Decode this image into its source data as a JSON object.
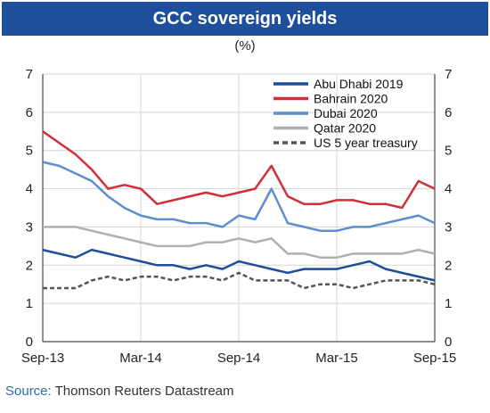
{
  "header": {
    "title": "GCC sovereign yields",
    "unit": "(%)"
  },
  "source": {
    "label": "Source:",
    "text": " Thomson Reuters Datastream"
  },
  "chart_data": {
    "type": "line",
    "title": "GCC sovereign yields",
    "subtitle": "(%)",
    "xlabel": "",
    "ylabel": "",
    "ylim": [
      0,
      7
    ],
    "yticks": [
      0,
      1,
      2,
      3,
      4,
      5,
      6,
      7
    ],
    "xlim": [
      "2013-09",
      "2015-09"
    ],
    "xticks": [
      {
        "value": "2013-09",
        "label": "Sep-13"
      },
      {
        "value": "2014-03",
        "label": "Mar-14"
      },
      {
        "value": "2014-09",
        "label": "Sep-14"
      },
      {
        "value": "2015-03",
        "label": "Mar-15"
      },
      {
        "value": "2015-09",
        "label": "Sep-15"
      }
    ],
    "grid": true,
    "legend_position": "top-right",
    "x": [
      "2013-09",
      "2013-10",
      "2013-11",
      "2013-12",
      "2014-01",
      "2014-02",
      "2014-03",
      "2014-04",
      "2014-05",
      "2014-06",
      "2014-07",
      "2014-08",
      "2014-09",
      "2014-10",
      "2014-11",
      "2014-12",
      "2015-01",
      "2015-02",
      "2015-03",
      "2015-04",
      "2015-05",
      "2015-06",
      "2015-07",
      "2015-08",
      "2015-09"
    ],
    "series": [
      {
        "name": "Abu Dhabi 2019",
        "color": "#1f4e99",
        "dash": "solid",
        "values": [
          2.4,
          2.3,
          2.2,
          2.4,
          2.3,
          2.2,
          2.1,
          2.0,
          2.0,
          1.9,
          2.0,
          1.9,
          2.1,
          2.0,
          1.9,
          1.8,
          1.9,
          1.9,
          1.9,
          2.0,
          2.1,
          1.9,
          1.8,
          1.7,
          1.6
        ]
      },
      {
        "name": "Bahrain 2020",
        "color": "#d02f3a",
        "dash": "solid",
        "values": [
          5.5,
          5.2,
          4.9,
          4.5,
          4.0,
          4.1,
          4.0,
          3.6,
          3.7,
          3.8,
          3.9,
          3.8,
          3.9,
          4.0,
          4.6,
          3.8,
          3.6,
          3.6,
          3.7,
          3.7,
          3.6,
          3.6,
          3.5,
          4.2,
          4.0
        ]
      },
      {
        "name": "Dubai 2020",
        "color": "#5b8fcf",
        "dash": "solid",
        "values": [
          4.7,
          4.6,
          4.4,
          4.2,
          3.8,
          3.5,
          3.3,
          3.2,
          3.2,
          3.1,
          3.1,
          3.0,
          3.3,
          3.2,
          4.0,
          3.1,
          3.0,
          2.9,
          2.9,
          3.0,
          3.0,
          3.1,
          3.2,
          3.3,
          3.1
        ]
      },
      {
        "name": "Qatar 2020",
        "color": "#b0b0b0",
        "dash": "solid",
        "values": [
          3.0,
          3.0,
          3.0,
          2.9,
          2.8,
          2.7,
          2.6,
          2.5,
          2.5,
          2.5,
          2.6,
          2.6,
          2.7,
          2.6,
          2.7,
          2.3,
          2.3,
          2.2,
          2.2,
          2.3,
          2.3,
          2.3,
          2.3,
          2.4,
          2.3
        ]
      },
      {
        "name": "US 5 year treasury",
        "color": "#555555",
        "dash": "dash",
        "values": [
          1.4,
          1.4,
          1.4,
          1.6,
          1.7,
          1.6,
          1.7,
          1.7,
          1.6,
          1.7,
          1.7,
          1.6,
          1.8,
          1.6,
          1.6,
          1.6,
          1.4,
          1.5,
          1.5,
          1.4,
          1.5,
          1.6,
          1.6,
          1.6,
          1.5
        ]
      }
    ]
  }
}
